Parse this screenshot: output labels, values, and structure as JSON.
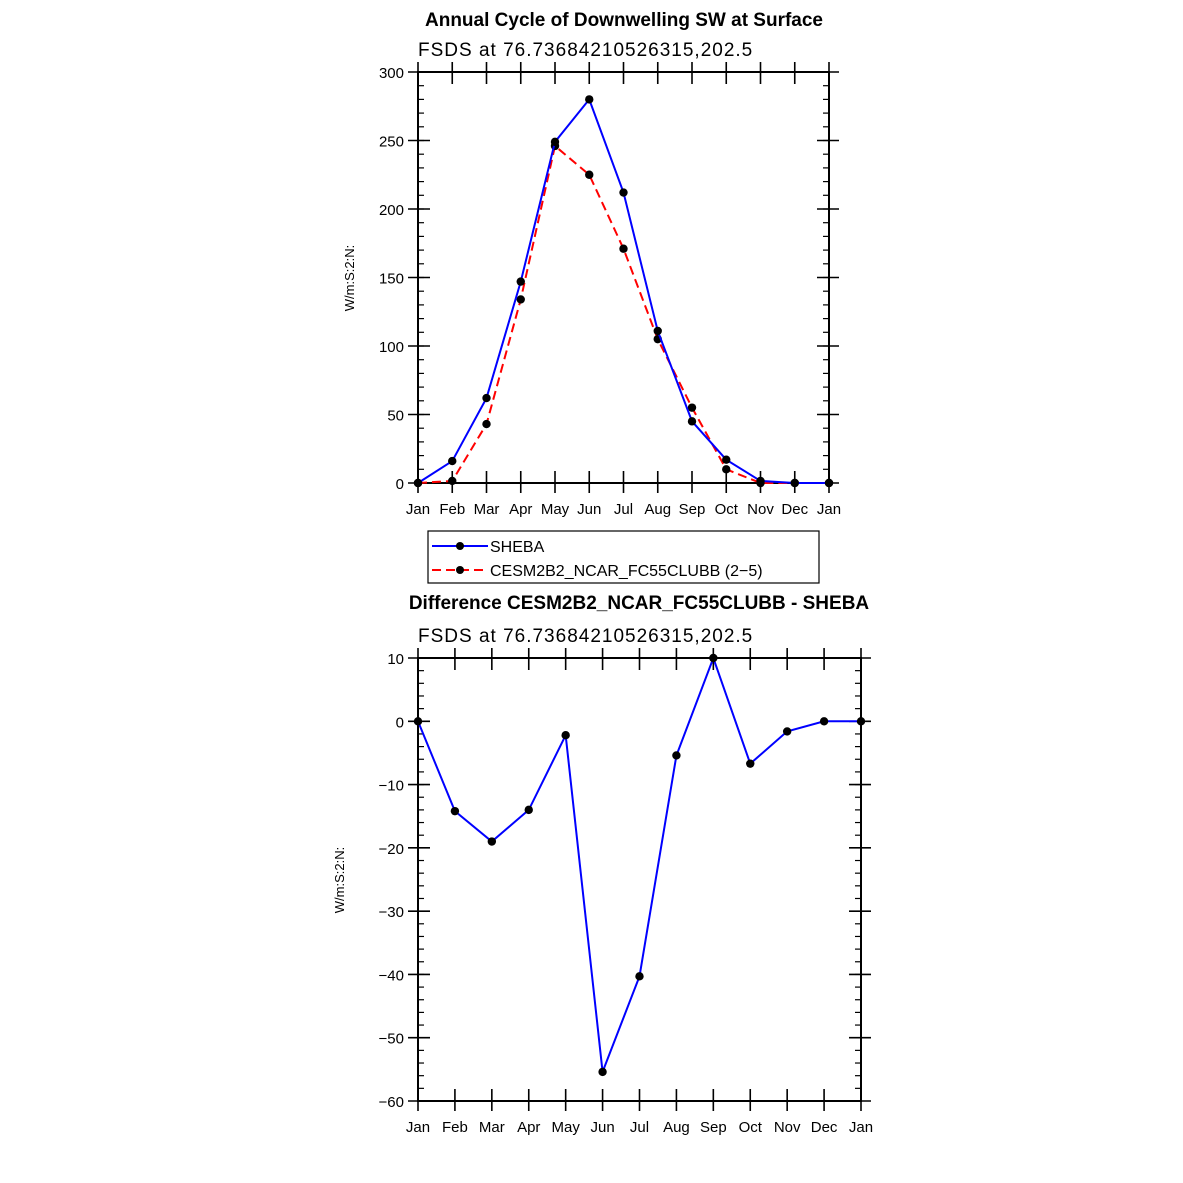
{
  "chart_data": [
    {
      "type": "line",
      "title": "Annual Cycle of Downwelling SW at Surface",
      "subtitle": "FSDS at 76.73684210526315,202.5",
      "xlabel": "",
      "ylabel": "W/m:S:2:N:",
      "categories": [
        "Jan",
        "Feb",
        "Mar",
        "Apr",
        "May",
        "Jun",
        "Jul",
        "Aug",
        "Sep",
        "Oct",
        "Nov",
        "Dec",
        "Jan"
      ],
      "ylim": [
        0,
        300
      ],
      "yticks": [
        0,
        50,
        100,
        150,
        200,
        250,
        300
      ],
      "legend_position": "below",
      "series": [
        {
          "name": "SHEBA",
          "color": "#0000ff",
          "dash": "solid",
          "values": [
            0,
            16,
            62,
            147,
            249,
            280,
            212,
            111,
            45,
            17,
            1.5,
            0,
            0
          ]
        },
        {
          "name": "CESM2B2_NCAR_FC55CLUBB (2−5)",
          "color": "#ff0000",
          "dash": "dashed",
          "values": [
            0,
            1.5,
            43,
            134,
            246,
            225,
            171,
            105,
            55,
            10,
            0,
            0,
            0
          ]
        }
      ]
    },
    {
      "type": "line",
      "title": "Difference CESM2B2_NCAR_FC55CLUBB - SHEBA",
      "subtitle": "FSDS at 76.73684210526315,202.5",
      "xlabel": "",
      "ylabel": "W/m:S:2:N:",
      "categories": [
        "Jan",
        "Feb",
        "Mar",
        "Apr",
        "May",
        "Jun",
        "Jul",
        "Aug",
        "Sep",
        "Oct",
        "Nov",
        "Dec",
        "Jan"
      ],
      "ylim": [
        -60,
        10
      ],
      "yticks": [
        10,
        0,
        -10,
        -20,
        -30,
        -40,
        -50,
        -60
      ],
      "series": [
        {
          "name": "Difference",
          "color": "#0000ff",
          "dash": "solid",
          "values": [
            0,
            -14.2,
            -19,
            -14,
            -2.2,
            -55.4,
            -40.3,
            -5.4,
            10,
            -6.7,
            -1.6,
            0,
            0
          ]
        }
      ]
    }
  ]
}
